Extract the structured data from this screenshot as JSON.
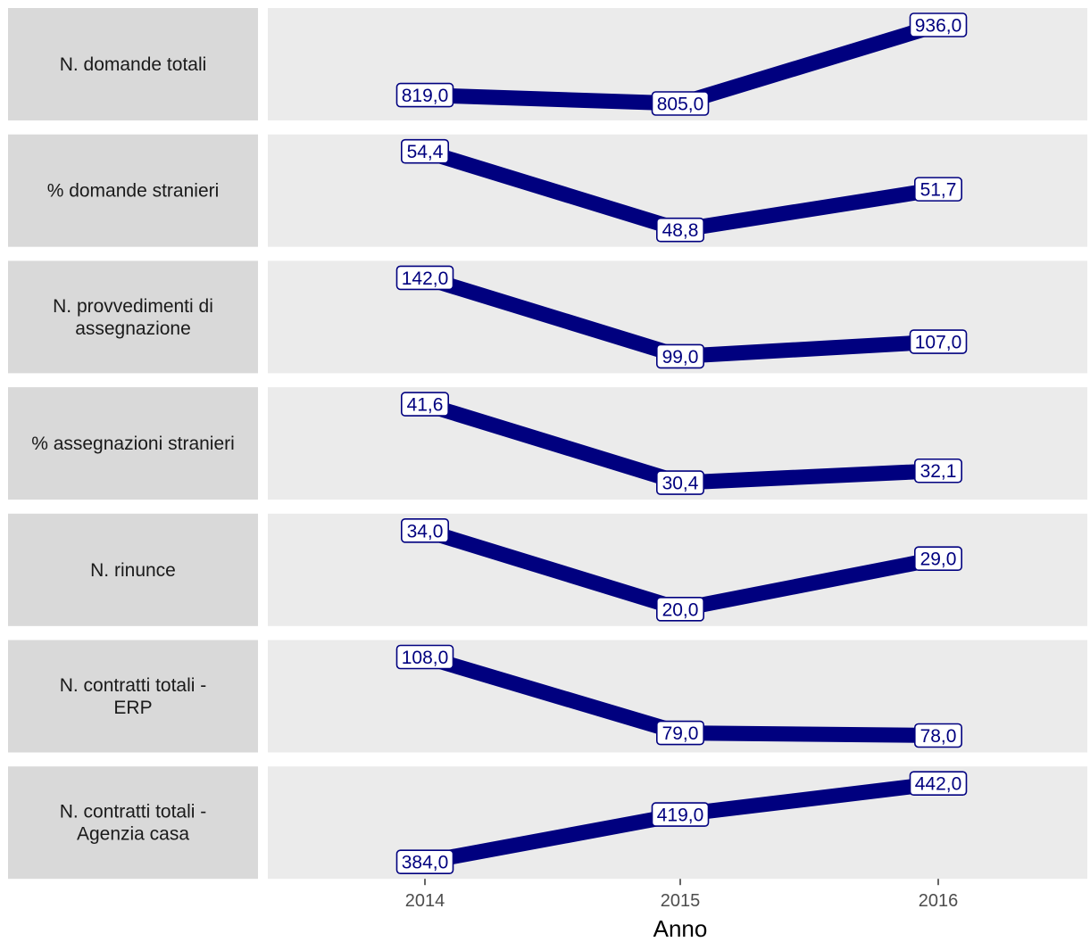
{
  "chart_data": {
    "type": "line",
    "layout": "faceted-rows",
    "xlabel": "Anno",
    "x": [
      "2014",
      "2015",
      "2016"
    ],
    "series_color": "#00007f",
    "panels": [
      {
        "label_lines": [
          "N. domande totali"
        ],
        "values": [
          819.0,
          805.0,
          936.0
        ],
        "value_labels": [
          "819,0",
          "805,0",
          "936,0"
        ]
      },
      {
        "label_lines": [
          "% domande stranieri"
        ],
        "values": [
          54.4,
          48.8,
          51.7
        ],
        "value_labels": [
          "54,4",
          "48,8",
          "51,7"
        ]
      },
      {
        "label_lines": [
          "N. provvedimenti di",
          "assegnazione"
        ],
        "values": [
          142.0,
          99.0,
          107.0
        ],
        "value_labels": [
          "142,0",
          "99,0",
          "107,0"
        ]
      },
      {
        "label_lines": [
          "% assegnazioni stranieri"
        ],
        "values": [
          41.6,
          30.4,
          32.1
        ],
        "value_labels": [
          "41,6",
          "30,4",
          "32,1"
        ]
      },
      {
        "label_lines": [
          "N. rinunce"
        ],
        "values": [
          34.0,
          20.0,
          29.0
        ],
        "value_labels": [
          "34,0",
          "20,0",
          "29,0"
        ]
      },
      {
        "label_lines": [
          "N. contratti totali -",
          "ERP"
        ],
        "values": [
          108.0,
          79.0,
          78.0
        ],
        "value_labels": [
          "108,0",
          "79,0",
          "78,0"
        ]
      },
      {
        "label_lines": [
          "N. contratti totali -",
          "Agenzia casa"
        ],
        "values": [
          384.0,
          419.0,
          442.0
        ],
        "value_labels": [
          "384,0",
          "419,0",
          "442,0"
        ]
      }
    ]
  }
}
